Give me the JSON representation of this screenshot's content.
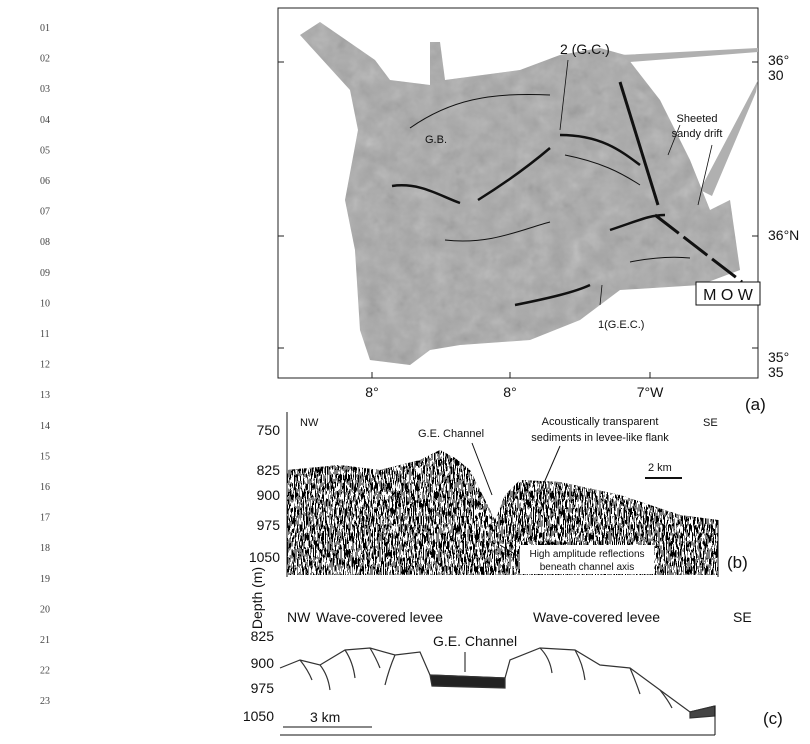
{
  "line_numbers": [
    "01",
    "02",
    "03",
    "04",
    "05",
    "06",
    "07",
    "08",
    "09",
    "10",
    "11",
    "12",
    "13",
    "14",
    "15",
    "16",
    "17",
    "18",
    "19",
    "20",
    "21",
    "22",
    "23"
  ],
  "panel_a": {
    "label": "(a)",
    "lat_labels": [
      {
        "deg": "36°",
        "min": "30"
      },
      {
        "deg": "36°N",
        "min": null
      },
      {
        "deg": "35°",
        "min": "35"
      }
    ],
    "lon_labels": [
      "8°",
      "8°",
      "7°W"
    ],
    "annotations": {
      "gc": "2 (G.C.)",
      "gb": "G.B.",
      "drift_1": "Sheeted",
      "drift_2": "sandy drift",
      "mow": "M O W",
      "gec": "1(G.E.C.)"
    }
  },
  "panel_b": {
    "label": "(b)",
    "depth_labels": [
      750,
      825,
      900,
      975,
      1050
    ],
    "nw": "NW",
    "se": "SE",
    "channel": "G.E. Channel",
    "transparent_1": "Acoustically transparent",
    "transparent_2": "sediments in levee-like flank",
    "scale": "2 km",
    "reflections_1": "High amplitude reflections",
    "reflections_2": "beneath channel axis"
  },
  "axis_title": "Depth (m)",
  "panel_c": {
    "label": "(c)",
    "depth_labels": [
      825,
      900,
      975,
      1050
    ],
    "nw": "NW",
    "se": "SE",
    "levee_left": "Wave-covered levee",
    "levee_right": "Wave-covered levee",
    "channel": "G.E. Channel",
    "scale": "3 km"
  }
}
